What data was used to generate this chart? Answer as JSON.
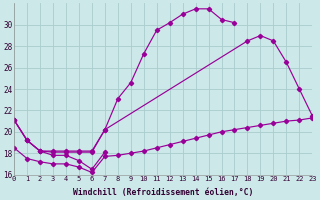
{
  "xlabel": "Windchill (Refroidissement éolien,°C)",
  "bg_color": "#cce8e8",
  "grid_color": "#aacccc",
  "line_color": "#990099",
  "xlim": [
    0,
    23
  ],
  "ylim": [
    16,
    32
  ],
  "yticks": [
    16,
    18,
    20,
    22,
    24,
    26,
    28,
    30
  ],
  "xticks": [
    0,
    1,
    2,
    3,
    4,
    5,
    6,
    7,
    8,
    9,
    10,
    11,
    12,
    13,
    14,
    15,
    16,
    17,
    18,
    19,
    20,
    21,
    22,
    23
  ],
  "curve_upper_x": [
    0,
    1,
    2,
    3,
    4,
    5,
    6,
    7,
    8,
    9,
    10,
    11,
    12,
    13,
    14,
    15,
    16,
    17
  ],
  "curve_upper_y": [
    21.1,
    19.2,
    18.2,
    18.1,
    18.1,
    18.1,
    18.1,
    20.2,
    23.1,
    24.6,
    27.3,
    29.5,
    30.2,
    31.0,
    31.5,
    31.5,
    30.5,
    30.2
  ],
  "curve_mid_x": [
    0,
    1,
    2,
    3,
    4,
    5,
    6,
    7,
    18,
    19,
    20,
    21,
    22,
    23
  ],
  "curve_mid_y": [
    21.1,
    19.2,
    18.2,
    18.2,
    18.2,
    18.2,
    18.2,
    20.2,
    28.5,
    29.0,
    28.5,
    26.5,
    24.0,
    21.5
  ],
  "curve_lower_x": [
    0,
    1,
    2,
    3,
    4,
    5,
    6,
    7,
    8,
    9,
    10,
    11,
    12,
    13,
    14,
    15,
    16,
    17,
    18,
    19,
    20,
    21,
    22,
    23
  ],
  "curve_lower_y": [
    18.5,
    17.5,
    17.2,
    17.0,
    17.0,
    16.7,
    16.2,
    17.7,
    17.8,
    18.0,
    18.2,
    18.5,
    18.8,
    19.1,
    19.4,
    19.7,
    20.0,
    20.2,
    20.4,
    20.6,
    20.8,
    21.0,
    21.1,
    21.3
  ],
  "curve_zigzag_x": [
    0,
    1,
    2,
    3,
    4,
    5,
    6,
    7
  ],
  "curve_zigzag_y": [
    21.1,
    19.2,
    18.2,
    17.8,
    17.8,
    17.3,
    16.5,
    18.1
  ]
}
